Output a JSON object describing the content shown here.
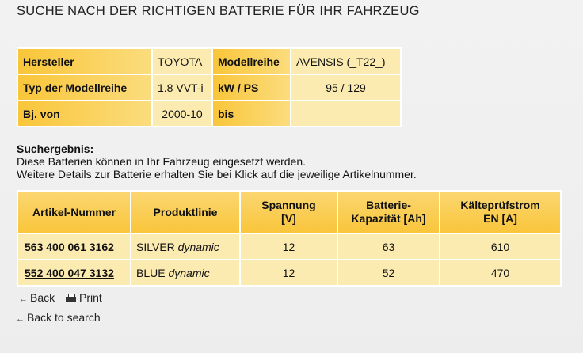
{
  "page": {
    "title": "SUCHE NACH DER RICHTIGEN BATTERIE FÜR IHR FAHRZEUG"
  },
  "vehicle": {
    "manufacturer_label": "Hersteller",
    "manufacturer_value": "TOYOTA",
    "series_label": "Modellreihe",
    "series_value": "AVENSIS (_T22_)",
    "type_label": "Typ der Modellreihe",
    "type_value": "1.8 VVT-i",
    "power_label": "kW / PS",
    "power_value": "95 / 129",
    "year_from_label": "Bj. von",
    "year_from_value": "2000-10",
    "year_to_label": "bis",
    "year_to_value": ""
  },
  "results": {
    "heading": "Suchergebnis:",
    "line1": "Diese Batterien können in Ihr Fahrzeug eingesetzt werden.",
    "line2": "Weitere Details zur Batterie erhalten Sie bei Klick auf die jeweilige Artikelnummer.",
    "columns": {
      "article": "Artikel-Nummer",
      "product_line": "Produktlinie",
      "voltage_1": "Spannung",
      "voltage_2": "[V]",
      "capacity_1": "Batterie-",
      "capacity_2": "Kapazität [Ah]",
      "cca_1": "Kälteprüfstrom",
      "cca_2": "EN [A]"
    },
    "rows": [
      {
        "article": "563 400 061 3162",
        "line_name": "SILVER",
        "line_suffix": "dynamic",
        "voltage": "12",
        "capacity": "63",
        "cca": "610"
      },
      {
        "article": "552 400 047 3132",
        "line_name": "BLUE",
        "line_suffix": "dynamic",
        "voltage": "12",
        "capacity": "52",
        "cca": "470"
      }
    ]
  },
  "nav": {
    "back": "Back",
    "print": "Print",
    "back_to_search": "Back to search"
  }
}
